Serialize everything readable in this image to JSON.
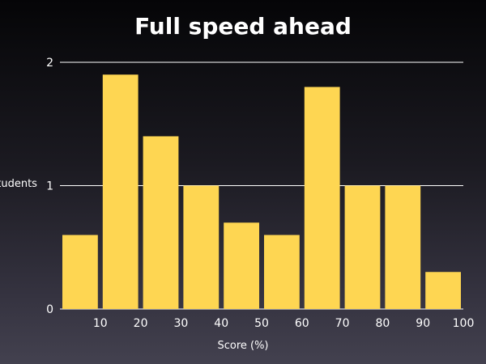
{
  "chart_data": {
    "type": "bar",
    "title": "Full speed ahead",
    "xlabel": "Score (%)",
    "ylabel": "Students",
    "bins": [
      {
        "x0": 0,
        "x1": 10,
        "value": 0.6
      },
      {
        "x0": 10,
        "x1": 20,
        "value": 1.9
      },
      {
        "x0": 20,
        "x1": 30,
        "value": 1.4
      },
      {
        "x0": 30,
        "x1": 40,
        "value": 1.0
      },
      {
        "x0": 40,
        "x1": 50,
        "value": 0.7
      },
      {
        "x0": 50,
        "x1": 60,
        "value": 0.6
      },
      {
        "x0": 60,
        "x1": 70,
        "value": 1.8
      },
      {
        "x0": 70,
        "x1": 80,
        "value": 1.0
      },
      {
        "x0": 80,
        "x1": 90,
        "value": 1.0
      },
      {
        "x0": 90,
        "x1": 100,
        "value": 0.3
      }
    ],
    "x_ticks": [
      10,
      20,
      30,
      40,
      50,
      60,
      70,
      80,
      90,
      100
    ],
    "y_ticks": [
      0,
      1,
      2
    ],
    "xlim": [
      0,
      100
    ],
    "ylim": [
      0,
      2
    ],
    "grid": true,
    "legend": "none",
    "colors": {
      "bar": "#fed652",
      "grid": "#ffffff",
      "text": "#ffffff"
    }
  }
}
